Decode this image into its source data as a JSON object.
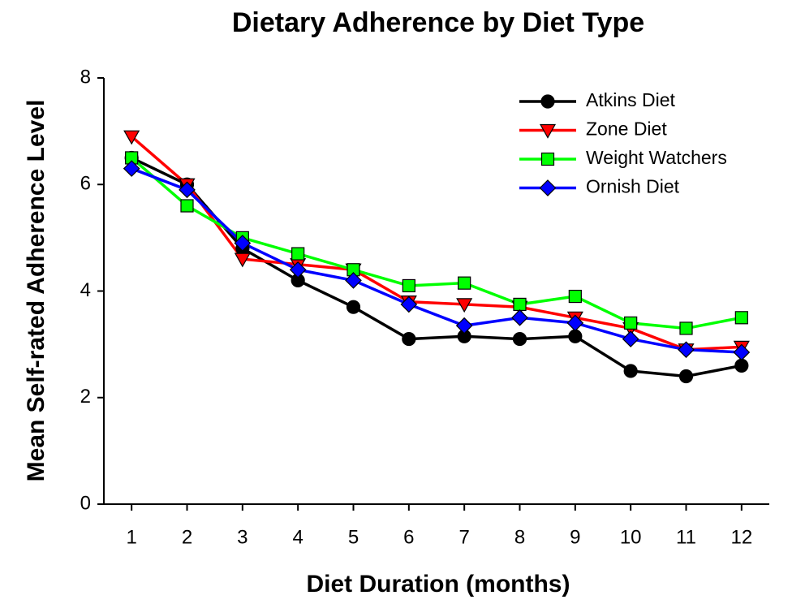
{
  "chart_data": {
    "type": "line",
    "title": "Dietary Adherence by Diet Type",
    "x_label": "Diet Duration (months)",
    "y_label": "Mean Self-rated Adherence Level",
    "x": [
      1,
      2,
      3,
      4,
      5,
      6,
      7,
      8,
      9,
      10,
      11,
      12
    ],
    "xlim": [
      0.5,
      12.5
    ],
    "xticks": [
      1,
      2,
      3,
      4,
      5,
      6,
      7,
      8,
      9,
      10,
      11,
      12
    ],
    "ylim": [
      0,
      8
    ],
    "yticks": [
      0,
      2,
      4,
      6,
      8
    ],
    "legend": "upper right",
    "series": [
      {
        "name": "Atkins Diet",
        "color": "#000000",
        "marker": "circle",
        "values": [
          6.5,
          6.0,
          4.8,
          4.2,
          3.7,
          3.1,
          3.15,
          3.1,
          3.15,
          2.5,
          2.4,
          2.6
        ]
      },
      {
        "name": "Zone Diet",
        "color": "#ff0000",
        "marker": "triangle-down",
        "values": [
          6.9,
          6.0,
          4.6,
          4.5,
          4.4,
          3.8,
          3.75,
          3.7,
          3.5,
          3.3,
          2.9,
          2.95
        ]
      },
      {
        "name": "Weight Watchers",
        "color": "#00ff00",
        "marker": "square",
        "values": [
          6.5,
          5.6,
          5.0,
          4.7,
          4.4,
          4.1,
          4.15,
          3.75,
          3.9,
          3.4,
          3.3,
          3.5
        ]
      },
      {
        "name": "Ornish Diet",
        "color": "#0000ff",
        "marker": "diamond",
        "values": [
          6.3,
          5.9,
          4.9,
          4.4,
          4.2,
          3.75,
          3.35,
          3.5,
          3.4,
          3.1,
          2.9,
          2.85
        ]
      }
    ]
  }
}
